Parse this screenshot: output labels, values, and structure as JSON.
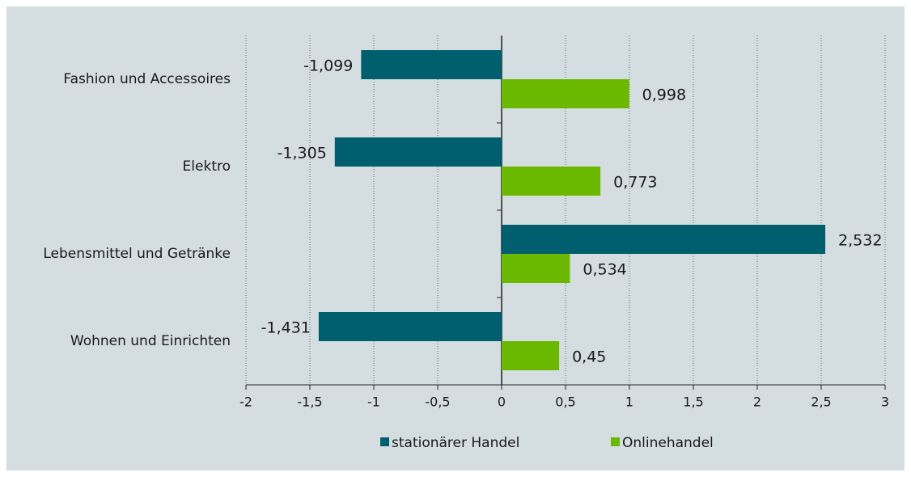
{
  "chart_data": {
    "type": "hbar",
    "categories": [
      "Fashion und Accessoires",
      "Elektro",
      "Lebensmittel und Getränke",
      "Wohnen und Einrichten"
    ],
    "series": [
      {
        "name": "stationärer Handel",
        "color": "#005f6e",
        "values": [
          -1.099,
          -1.305,
          2.532,
          -1.431
        ],
        "value_labels": [
          "-1,099",
          "-1,305",
          "2,532",
          "-1,431"
        ]
      },
      {
        "name": "Onlinehandel",
        "color": "#6ab800",
        "values": [
          0.998,
          0.773,
          0.534,
          0.45
        ],
        "value_labels": [
          "0,998",
          "0,773",
          "0,534",
          "0,45"
        ]
      }
    ],
    "xlim": [
      -2,
      3
    ],
    "xticks": [
      -2,
      {
        "value": -1.5,
        "label": "-1,5"
      },
      -1,
      {
        "value": -0.5,
        "label": "-0,5"
      },
      0,
      {
        "value": 0.5,
        "label": "0,5"
      },
      1,
      {
        "value": 1.5,
        "label": "1,5"
      },
      2,
      {
        "value": 2.5,
        "label": "2,5"
      },
      3
    ],
    "grid": true,
    "legend": "bottom"
  }
}
